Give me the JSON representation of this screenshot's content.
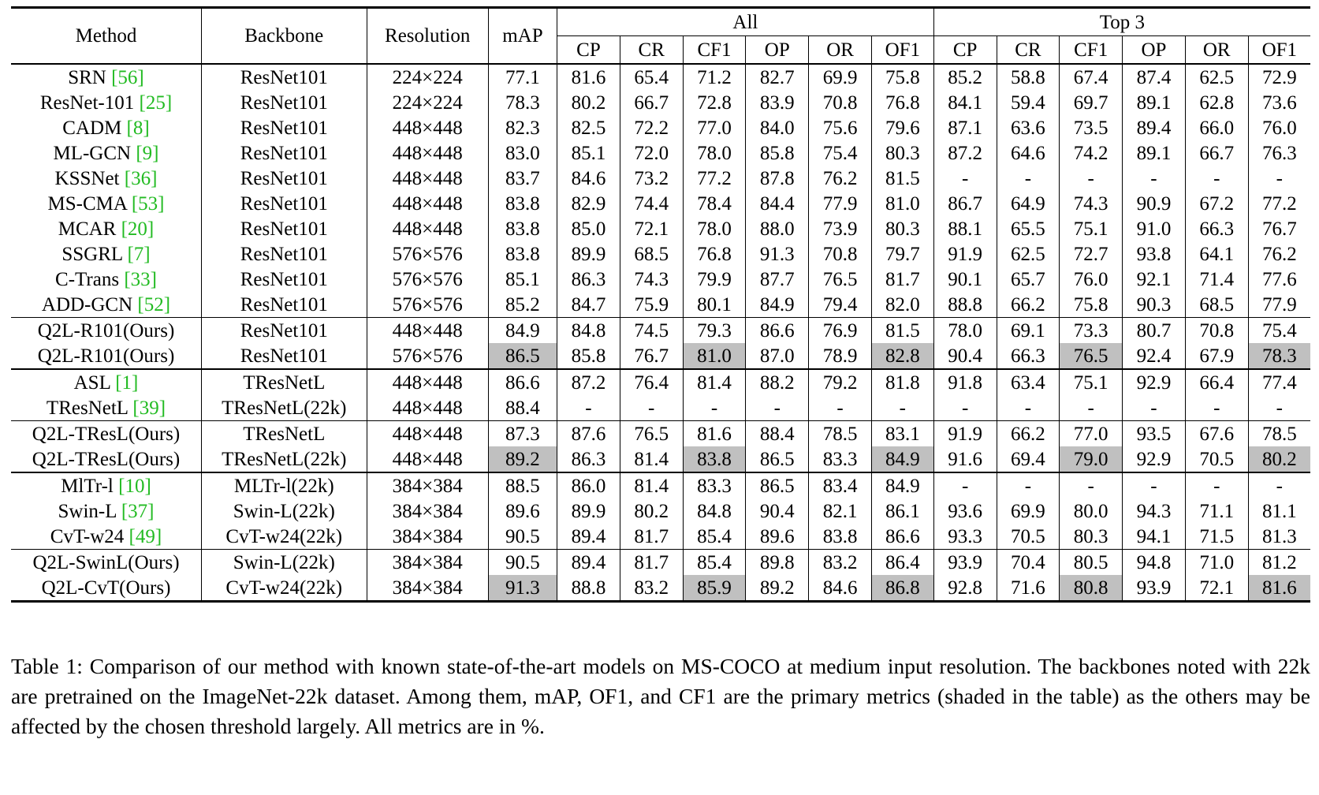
{
  "table": {
    "headers": {
      "method": "Method",
      "backbone": "Backbone",
      "resolution": "Resolution",
      "map": "mAP",
      "all": "All",
      "top3": "Top 3",
      "sub": [
        "CP",
        "CR",
        "CF1",
        "OP",
        "OR",
        "OF1",
        "CP",
        "CR",
        "CF1",
        "OP",
        "OR",
        "OF1"
      ]
    },
    "groups": [
      [
        {
          "method": "SRN ",
          "cite": "[56]",
          "backbone": "ResNet101",
          "res": "224×224",
          "vals": [
            "77.1",
            "81.6",
            "65.4",
            "71.2",
            "82.7",
            "69.9",
            "75.8",
            "85.2",
            "58.8",
            "67.4",
            "87.4",
            "62.5",
            "72.9"
          ]
        },
        {
          "method": "ResNet-101 ",
          "cite": "[25]",
          "backbone": "ResNet101",
          "res": "224×224",
          "vals": [
            "78.3",
            "80.2",
            "66.7",
            "72.8",
            "83.9",
            "70.8",
            "76.8",
            "84.1",
            "59.4",
            "69.7",
            "89.1",
            "62.8",
            "73.6"
          ]
        },
        {
          "method": "CADM ",
          "cite": "[8]",
          "backbone": "ResNet101",
          "res": "448×448",
          "vals": [
            "82.3",
            "82.5",
            "72.2",
            "77.0",
            "84.0",
            "75.6",
            "79.6",
            "87.1",
            "63.6",
            "73.5",
            "89.4",
            "66.0",
            "76.0"
          ]
        },
        {
          "method": "ML-GCN ",
          "cite": "[9]",
          "backbone": "ResNet101",
          "res": "448×448",
          "vals": [
            "83.0",
            "85.1",
            "72.0",
            "78.0",
            "85.8",
            "75.4",
            "80.3",
            "87.2",
            "64.6",
            "74.2",
            "89.1",
            "66.7",
            "76.3"
          ]
        },
        {
          "method": "KSSNet ",
          "cite": "[36]",
          "backbone": "ResNet101",
          "res": "448×448",
          "vals": [
            "83.7",
            "84.6",
            "73.2",
            "77.2",
            "87.8",
            "76.2",
            "81.5",
            "-",
            "-",
            "-",
            "-",
            "-",
            "-"
          ]
        },
        {
          "method": "MS-CMA ",
          "cite": "[53]",
          "backbone": "ResNet101",
          "res": "448×448",
          "vals": [
            "83.8",
            "82.9",
            "74.4",
            "78.4",
            "84.4",
            "77.9",
            "81.0",
            "86.7",
            "64.9",
            "74.3",
            "90.9",
            "67.2",
            "77.2"
          ]
        },
        {
          "method": "MCAR ",
          "cite": "[20]",
          "backbone": "ResNet101",
          "res": "448×448",
          "vals": [
            "83.8",
            "85.0",
            "72.1",
            "78.0",
            "88.0",
            "73.9",
            "80.3",
            "88.1",
            "65.5",
            "75.1",
            "91.0",
            "66.3",
            "76.7"
          ]
        },
        {
          "method": "SSGRL ",
          "cite": "[7]",
          "backbone": "ResNet101",
          "res": "576×576",
          "vals": [
            "83.8",
            "89.9",
            "68.5",
            "76.8",
            "91.3",
            "70.8",
            "79.7",
            "91.9",
            "62.5",
            "72.7",
            "93.8",
            "64.1",
            "76.2"
          ]
        },
        {
          "method": "C-Trans ",
          "cite": "[33]",
          "backbone": "ResNet101",
          "res": "576×576",
          "vals": [
            "85.1",
            "86.3",
            "74.3",
            "79.9",
            "87.7",
            "76.5",
            "81.7",
            "90.1",
            "65.7",
            "76.0",
            "92.1",
            "71.4",
            "77.6"
          ],
          "bold": [
            4,
            11
          ]
        },
        {
          "method": "ADD-GCN ",
          "cite": "[52]",
          "backbone": "ResNet101",
          "res": "576×576",
          "vals": [
            "85.2",
            "84.7",
            "75.9",
            "80.1",
            "84.9",
            "79.4",
            "82.0",
            "88.8",
            "66.2",
            "75.8",
            "90.3",
            "68.5",
            "77.9"
          ],
          "bold": [
            5
          ]
        }
      ],
      [
        {
          "method": "Q2L-R101(Ours)",
          "cite": "",
          "backbone": "ResNet101",
          "res": "448×448",
          "vals": [
            "84.9",
            "84.8",
            "74.5",
            "79.3",
            "86.6",
            "76.9",
            "81.5",
            "78.0",
            "69.1",
            "73.3",
            "80.7",
            "70.8",
            "75.4"
          ]
        },
        {
          "method": "Q2L-R101(Ours)",
          "cite": "",
          "backbone": "ResNet101",
          "res": "576×576",
          "vals": [
            "86.5",
            "85.8",
            "76.7",
            "81.0",
            "87.0",
            "78.9",
            "82.8",
            "90.4",
            "66.3",
            "76.5",
            "92.4",
            "67.9",
            "78.3"
          ],
          "bold": [
            1,
            2,
            7,
            8,
            10
          ],
          "shade": [
            0,
            3,
            6,
            9,
            12
          ]
        }
      ],
      [
        {
          "method": "ASL ",
          "cite": "[1]",
          "backbone": "TResNetL",
          "res": "448×448",
          "vals": [
            "86.6",
            "87.2",
            "76.4",
            "81.4",
            "88.2",
            "79.2",
            "81.8",
            "91.8",
            "63.4",
            "75.1",
            "92.9",
            "66.4",
            "77.4"
          ]
        },
        {
          "method": "TResNetL ",
          "cite": "[39]",
          "backbone": "TResNetL(22k)",
          "res": "448×448",
          "vals": [
            "88.4",
            "-",
            "-",
            "-",
            "-",
            "-",
            "-",
            "-",
            "-",
            "-",
            "-",
            "-",
            "-"
          ]
        }
      ],
      [
        {
          "method": "Q2L-TResL(Ours)",
          "cite": "",
          "backbone": "TResNetL",
          "res": "448×448",
          "vals": [
            "87.3",
            "87.6",
            "76.5",
            "81.6",
            "88.4",
            "78.5",
            "83.1",
            "91.9",
            "66.2",
            "77.0",
            "93.5",
            "67.6",
            "78.5"
          ],
          "bold": [
            1,
            4,
            7,
            10
          ]
        },
        {
          "method": "Q2L-TResL(Ours)",
          "cite": "",
          "backbone": "TResNetL(22k)",
          "res": "448×448",
          "vals": [
            "89.2",
            "86.3",
            "81.4",
            "83.8",
            "86.5",
            "83.3",
            "84.9",
            "91.6",
            "69.4",
            "79.0",
            "92.9",
            "70.5",
            "80.2"
          ],
          "bold": [
            2,
            5,
            8,
            11
          ],
          "shade": [
            0,
            3,
            6,
            9,
            12
          ]
        }
      ],
      [
        {
          "method": "MlTr-l ",
          "cite": "[10]",
          "backbone": "MLTr-l(22k)",
          "res": "384×384",
          "vals": [
            "88.5",
            "86.0",
            "81.4",
            "83.3",
            "86.5",
            "83.4",
            "84.9",
            "-",
            "-",
            "-",
            "-",
            "-",
            "-"
          ]
        },
        {
          "method": "Swin-L ",
          "cite": "[37]",
          "backbone": "Swin-L(22k)",
          "res": "384×384",
          "vals": [
            "89.6",
            "89.9",
            "80.2",
            "84.8",
            "90.4",
            "82.1",
            "86.1",
            "93.6",
            "69.9",
            "80.0",
            "94.3",
            "71.1",
            "81.1"
          ],
          "bold": [
            1,
            4
          ]
        },
        {
          "method": "CvT-w24 ",
          "cite": "[49]",
          "backbone": "CvT-w24(22k)",
          "res": "384×384",
          "vals": [
            "90.5",
            "89.4",
            "81.7",
            "85.4",
            "89.6",
            "83.8",
            "86.6",
            "93.3",
            "70.5",
            "80.3",
            "94.1",
            "71.5",
            "81.3"
          ]
        }
      ],
      [
        {
          "method": "Q2L-SwinL(Ours)",
          "cite": "",
          "backbone": "Swin-L(22k)",
          "res": "384×384",
          "vals": [
            "90.5",
            "89.4",
            "81.7",
            "85.4",
            "89.8",
            "83.2",
            "86.4",
            "93.9",
            "70.4",
            "80.5",
            "94.8",
            "71.0",
            "81.2"
          ],
          "bold": [
            7,
            10
          ]
        },
        {
          "method": "Q2L-CvT(Ours)",
          "cite": "",
          "backbone": "CvT-w24(22k)",
          "res": "384×384",
          "vals": [
            "91.3",
            "88.8",
            "83.2",
            "85.9",
            "89.2",
            "84.6",
            "86.8",
            "92.8",
            "71.6",
            "80.8",
            "93.9",
            "72.1",
            "81.6"
          ],
          "bold": [
            2,
            5,
            8,
            11
          ],
          "shade": [
            0,
            3,
            6,
            9,
            12
          ]
        }
      ]
    ]
  },
  "caption": "Table 1: Comparison of our method with known state-of-the-art models on MS-COCO at medium input resolution. The backbones noted with 22k are pretrained on the ImageNet-22k dataset. Among them, mAP, OF1, and CF1 are the primary metrics (shaded in the table) as the others may be affected by the chosen threshold largely. All metrics are in %."
}
